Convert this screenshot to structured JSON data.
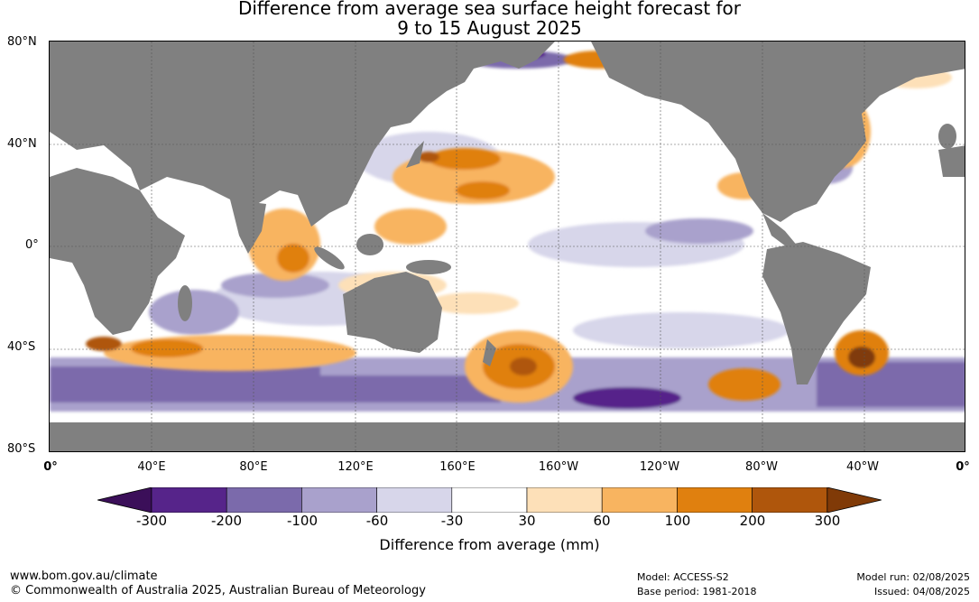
{
  "title": {
    "line1": "Difference from average sea surface height forecast for",
    "line2": "9 to 15 August 2025"
  },
  "map": {
    "latitude_labels": [
      "80°N",
      "40°N",
      "0°",
      "40°S",
      "80°S"
    ],
    "longitude_labels": [
      "0°",
      "40°E",
      "80°E",
      "120°E",
      "160°E",
      "160°W",
      "120°W",
      "80°W",
      "40°W",
      "0°"
    ],
    "land_color": "#808080",
    "ocean_base_color": "#ffffff",
    "grid": true
  },
  "colorbar": {
    "ticks": [
      "-300",
      "-200",
      "-100",
      "-60",
      "-30",
      "30",
      "60",
      "100",
      "200",
      "300"
    ],
    "colors": [
      "#3b0f59",
      "#56248a",
      "#7b6aab",
      "#a9a1cc",
      "#d7d6ea",
      "#ffffff",
      "#fde0b8",
      "#f8b460",
      "#e0800f",
      "#af560c",
      "#803a07"
    ],
    "label": "Difference from average (mm)"
  },
  "footer": {
    "website": "www.bom.gov.au/climate",
    "copyright": "© Commonwealth of Australia 2025, Australian Bureau of Meteorology",
    "model": "Model: ACCESS-S2",
    "base_period": "Base period: 1981-2018",
    "model_run": "Model run: 02/08/2025",
    "issued": "Issued: 04/08/2025"
  }
}
